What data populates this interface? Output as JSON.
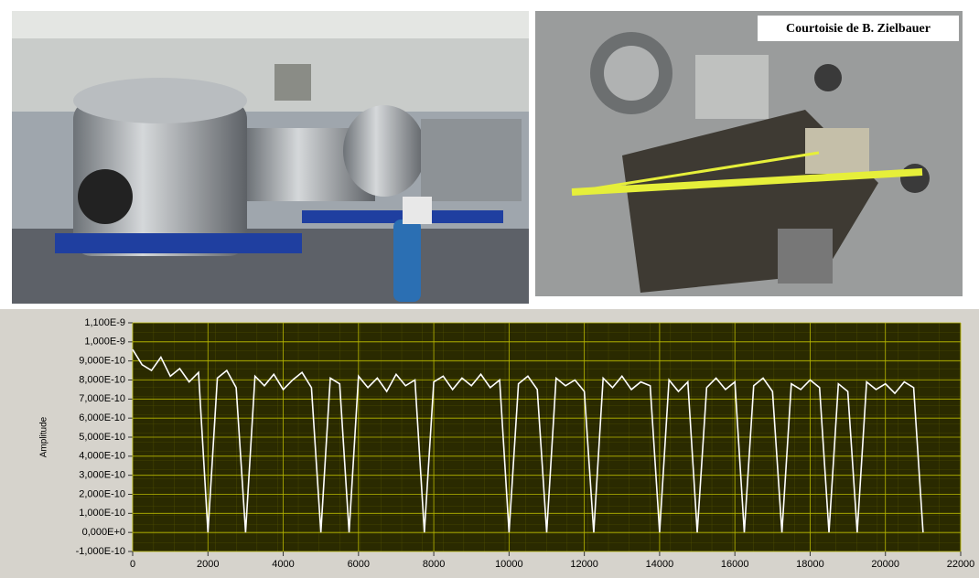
{
  "caption": "Courtoisie de B. Zielbauer",
  "chart_data": {
    "type": "line",
    "y_label": "Amplitude",
    "x": [
      0,
      250,
      500,
      750,
      1000,
      1250,
      1500,
      1750,
      2000,
      2250,
      2500,
      2750,
      3000,
      3250,
      3500,
      3750,
      4000,
      4250,
      4500,
      4750,
      5000,
      5250,
      5500,
      5750,
      6000,
      6250,
      6500,
      6750,
      7000,
      7250,
      7500,
      7750,
      8000,
      8250,
      8500,
      8750,
      9000,
      9250,
      9500,
      9750,
      10000,
      10250,
      10500,
      10750,
      11000,
      11250,
      11500,
      11750,
      12000,
      12250,
      12500,
      12750,
      13000,
      13250,
      13500,
      13750,
      14000,
      14250,
      14500,
      14750,
      15000,
      15250,
      15500,
      15750,
      16000,
      16250,
      16500,
      16750,
      17000,
      17250,
      17500,
      17750,
      18000,
      18250,
      18500,
      18750,
      19000,
      19250,
      19500,
      19750,
      20000,
      20250,
      20500,
      20750,
      21000
    ],
    "series": [
      {
        "color": "#ffffff",
        "values": [
          9.6e-10,
          8.8e-10,
          8.5e-10,
          9.2e-10,
          8.2e-10,
          8.6e-10,
          7.9e-10,
          8.4e-10,
          0,
          8.1e-10,
          8.5e-10,
          7.6e-10,
          0,
          8.2e-10,
          7.7e-10,
          8.3e-10,
          7.5e-10,
          8e-10,
          8.4e-10,
          7.6e-10,
          0,
          8.1e-10,
          7.8e-10,
          0,
          8.2e-10,
          7.6e-10,
          8.1e-10,
          7.4e-10,
          8.3e-10,
          7.7e-10,
          8e-10,
          0,
          7.9e-10,
          8.2e-10,
          7.5e-10,
          8.1e-10,
          7.7e-10,
          8.3e-10,
          7.6e-10,
          8e-10,
          0,
          7.8e-10,
          8.2e-10,
          7.5e-10,
          0,
          8.1e-10,
          7.7e-10,
          8e-10,
          7.4e-10,
          0,
          8.1e-10,
          7.6e-10,
          8.2e-10,
          7.5e-10,
          7.9e-10,
          7.7e-10,
          0,
          8e-10,
          7.4e-10,
          7.9e-10,
          0,
          7.6e-10,
          8.1e-10,
          7.5e-10,
          7.9e-10,
          0,
          7.7e-10,
          8.1e-10,
          7.4e-10,
          0,
          7.8e-10,
          7.5e-10,
          8e-10,
          7.6e-10,
          0,
          7.8e-10,
          7.4e-10,
          0,
          7.9e-10,
          7.5e-10,
          7.8e-10,
          7.3e-10,
          7.9e-10,
          7.6e-10,
          0
        ]
      }
    ],
    "xlim": [
      0,
      22000
    ],
    "xticks": [
      0,
      2000,
      4000,
      6000,
      8000,
      10000,
      12000,
      14000,
      16000,
      18000,
      20000,
      22000
    ],
    "ylim": [
      -1e-10,
      1.1e-09
    ],
    "yticks": [
      {
        "value": -1e-10,
        "label": "-1,000E-10"
      },
      {
        "value": 0,
        "label": "0,000E+0"
      },
      {
        "value": 1e-10,
        "label": "1,000E-10"
      },
      {
        "value": 2e-10,
        "label": "2,000E-10"
      },
      {
        "value": 3e-10,
        "label": "3,000E-10"
      },
      {
        "value": 4e-10,
        "label": "4,000E-10"
      },
      {
        "value": 5e-10,
        "label": "5,000E-10"
      },
      {
        "value": 6e-10,
        "label": "6,000E-10"
      },
      {
        "value": 7e-10,
        "label": "7,000E-10"
      },
      {
        "value": 8e-10,
        "label": "8,000E-10"
      },
      {
        "value": 9e-10,
        "label": "9,000E-10"
      },
      {
        "value": 1e-09,
        "label": "1,000E-9"
      },
      {
        "value": 1.1e-09,
        "label": "1,100E-9"
      }
    ],
    "grid": true
  }
}
